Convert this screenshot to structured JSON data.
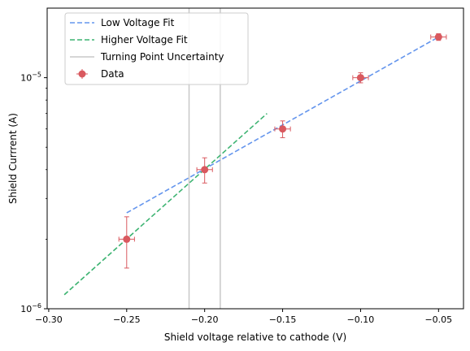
{
  "chart_data": {
    "type": "scatter",
    "title": "",
    "xlabel": "Shield voltage relative to cathode (V)",
    "ylabel": "Shield Currrent (A)",
    "xlim": [
      -0.301,
      -0.034
    ],
    "ylim": [
      1e-06,
      2e-05
    ],
    "yscale": "log",
    "grid": false,
    "legend_position": "top-left",
    "x_ticks": [
      {
        "value": -0.3,
        "label": "−0.30"
      },
      {
        "value": -0.25,
        "label": "−0.25"
      },
      {
        "value": -0.2,
        "label": "−0.20"
      },
      {
        "value": -0.15,
        "label": "−0.15"
      },
      {
        "value": -0.1,
        "label": "−0.10"
      },
      {
        "value": -0.05,
        "label": "−0.05"
      }
    ],
    "y_ticks": [
      {
        "value": 1e-06,
        "base": "10",
        "exp": "−6"
      },
      {
        "value": 1e-05,
        "base": "10",
        "exp": "−5"
      }
    ],
    "series": [
      {
        "name": "Low Voltage Fit",
        "kind": "line",
        "style": "dashed",
        "color": "#6495ed",
        "x": [
          -0.25,
          -0.05
        ],
        "y": [
          2.6e-06,
          1.5e-05
        ]
      },
      {
        "name": "Higher Voltage Fit",
        "kind": "line",
        "style": "dashed",
        "color": "#3cb371",
        "x": [
          -0.29,
          -0.16
        ],
        "y": [
          1.15e-06,
          7e-06
        ]
      },
      {
        "name": "Turning Point Uncertainty",
        "kind": "vline",
        "color": "#c8c8c8",
        "x": [
          -0.21,
          -0.19
        ]
      },
      {
        "name": "Data",
        "kind": "errorbar",
        "color": "#d9595f",
        "x": [
          -0.25,
          -0.2,
          -0.15,
          -0.1,
          -0.05
        ],
        "y": [
          2e-06,
          4e-06,
          6e-06,
          1e-05,
          1.5e-05
        ],
        "yerr": [
          5e-07,
          5e-07,
          5e-07,
          5e-07,
          5e-07
        ],
        "xerr": [
          0.005,
          0.005,
          0.005,
          0.005,
          0.005
        ]
      }
    ]
  }
}
